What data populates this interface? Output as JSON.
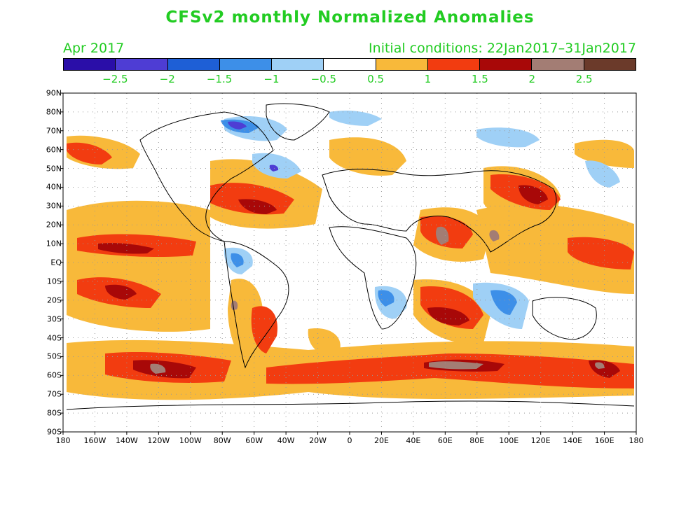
{
  "title": "CFSv2 monthly Normalized Anomalies",
  "subtitle_left": "Apr 2017",
  "subtitle_right": "Initial conditions: 22Jan2017–31Jan2017",
  "colors": {
    "title": "#22cc22",
    "text": "#22cc22"
  },
  "colorbar": {
    "colors": [
      "#2a0ea8",
      "#4e3dd4",
      "#1e5fd6",
      "#3d8fe8",
      "#9fd0f6",
      "#ffffff",
      "#f8b93a",
      "#f23c10",
      "#a80808",
      "#a37d74",
      "#6b3a2a"
    ],
    "labels": [
      "−2.5",
      "−2",
      "−1.5",
      "−1",
      "−0.5",
      "0.5",
      "1",
      "1.5",
      "2",
      "2.5"
    ]
  },
  "lat_labels": [
    "90N",
    "80N",
    "70N",
    "60N",
    "50N",
    "40N",
    "30N",
    "20N",
    "10N",
    "EQ",
    "10S",
    "20S",
    "30S",
    "40S",
    "50S",
    "60S",
    "70S",
    "80S",
    "90S"
  ],
  "lon_labels": [
    "180",
    "160W",
    "140W",
    "120W",
    "100W",
    "80W",
    "60W",
    "40W",
    "20W",
    "0",
    "20E",
    "40E",
    "60E",
    "80E",
    "100E",
    "120E",
    "140E",
    "160E",
    "180"
  ]
}
